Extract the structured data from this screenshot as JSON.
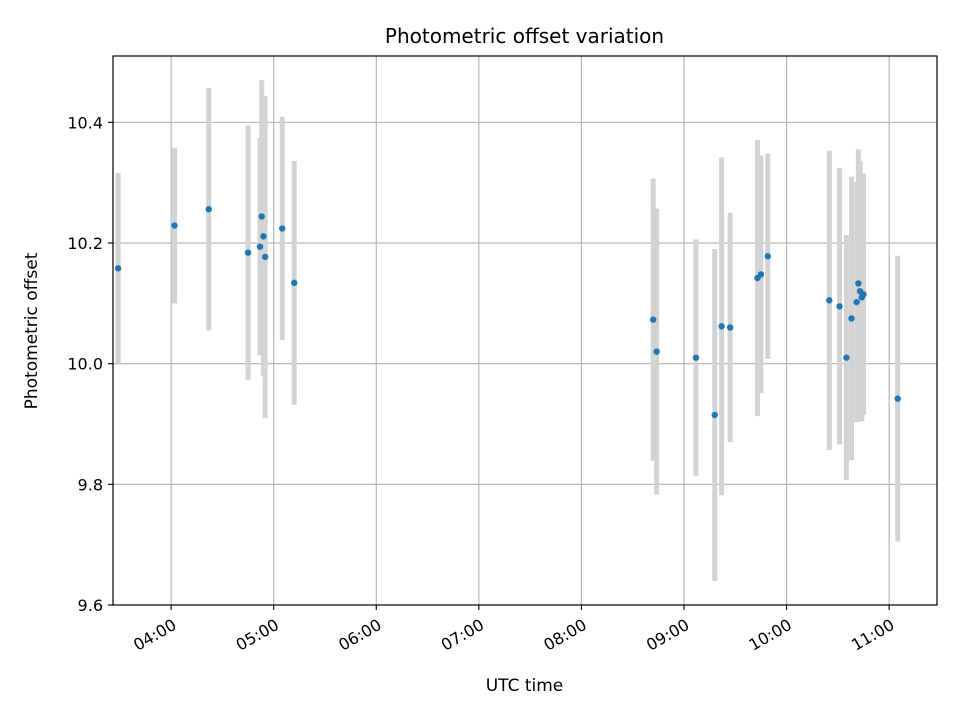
{
  "chart_data": {
    "type": "scatter",
    "title": "Photometric offset variation",
    "xlabel": "UTC time",
    "ylabel": "Photometric offset",
    "xlim": [
      "03:26",
      "11:28"
    ],
    "ylim": [
      9.6,
      10.51
    ],
    "grid": true,
    "x_ticks": [
      "04:00",
      "05:00",
      "06:00",
      "07:00",
      "08:00",
      "09:00",
      "10:00",
      "11:00"
    ],
    "y_ticks": [
      9.6,
      9.8,
      10.0,
      10.2,
      10.4
    ],
    "y_tick_labels": [
      "9.6",
      "9.8",
      "10.0",
      "10.2",
      "10.4"
    ],
    "colors": {
      "point": "#1f77b4",
      "errorbar": "#d3d3d3",
      "grid": "#b0b0b0",
      "axes": "#000000"
    },
    "series": [
      {
        "points": [
          {
            "x": "03:29",
            "y": 10.158,
            "err": 0.158
          },
          {
            "x": "04:02",
            "y": 10.229,
            "err": 0.129
          },
          {
            "x": "04:22",
            "y": 10.256,
            "err": 0.201
          },
          {
            "x": "04:45",
            "y": 10.184,
            "err": 0.211
          },
          {
            "x": "04:52",
            "y": 10.194,
            "err": 0.18
          },
          {
            "x": "04:53",
            "y": 10.244,
            "err": 0.226
          },
          {
            "x": "04:54",
            "y": 10.211,
            "err": 0.232
          },
          {
            "x": "04:55",
            "y": 10.177,
            "err": 0.267
          },
          {
            "x": "05:05",
            "y": 10.224,
            "err": 0.185
          },
          {
            "x": "05:12",
            "y": 10.134,
            "err": 0.202
          },
          {
            "x": "08:42",
            "y": 10.073,
            "err": 0.234
          },
          {
            "x": "08:44",
            "y": 10.02,
            "err": 0.237
          },
          {
            "x": "09:07",
            "y": 10.01,
            "err": 0.196
          },
          {
            "x": "09:18",
            "y": 9.915,
            "err": 0.275
          },
          {
            "x": "09:22",
            "y": 10.062,
            "err": 0.28
          },
          {
            "x": "09:27",
            "y": 10.06,
            "err": 0.19
          },
          {
            "x": "09:43",
            "y": 10.142,
            "err": 0.229
          },
          {
            "x": "09:45",
            "y": 10.148,
            "err": 0.197
          },
          {
            "x": "09:49",
            "y": 10.178,
            "err": 0.17
          },
          {
            "x": "10:25",
            "y": 10.105,
            "err": 0.248
          },
          {
            "x": "10:31",
            "y": 10.095,
            "err": 0.229
          },
          {
            "x": "10:35",
            "y": 10.01,
            "err": 0.203
          },
          {
            "x": "10:38",
            "y": 10.075,
            "err": 0.235
          },
          {
            "x": "10:41",
            "y": 10.102,
            "err": 0.199
          },
          {
            "x": "10:42",
            "y": 10.133,
            "err": 0.222
          },
          {
            "x": "10:43",
            "y": 10.12,
            "err": 0.216
          },
          {
            "x": "10:44",
            "y": 10.11,
            "err": 0.205
          },
          {
            "x": "10:45",
            "y": 10.115,
            "err": 0.2
          },
          {
            "x": "11:05",
            "y": 9.942,
            "err": 0.237
          }
        ]
      }
    ]
  }
}
